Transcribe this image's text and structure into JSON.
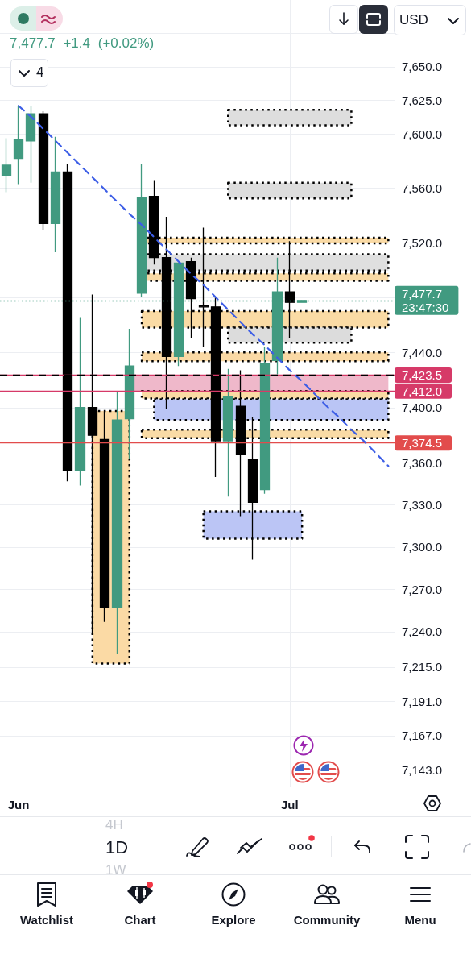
{
  "chart_data": {
    "type": "candlestick",
    "categories": [
      null,
      "Jun",
      null,
      null,
      null,
      null,
      null,
      null,
      null,
      null,
      null,
      null,
      null,
      null,
      null,
      null,
      null,
      null,
      null,
      null,
      null,
      null,
      null,
      "Jul",
      null,
      null,
      null,
      null,
      null,
      null,
      null,
      null
    ],
    "ohlc": [
      [
        7569,
        7597,
        7557,
        7577
      ],
      [
        7582,
        7621,
        7563,
        7596
      ],
      [
        7595,
        7621,
        7564,
        7615
      ],
      [
        7615,
        7617,
        7529,
        7534
      ],
      [
        7534,
        7598,
        7513,
        7572
      ],
      [
        7572,
        7578,
        7347,
        7355
      ],
      [
        7355,
        7465,
        7344,
        7400
      ],
      [
        7400,
        7482,
        7238,
        7380
      ],
      [
        7377,
        7397,
        7247,
        7257
      ],
      [
        7257,
        7412,
        7224,
        7391
      ],
      [
        7392,
        7457,
        7363,
        7430
      ],
      [
        7483,
        7578,
        7480,
        7553
      ],
      [
        7554,
        7566,
        7504,
        7509
      ],
      [
        7509,
        7539,
        7399,
        7437
      ],
      [
        7437,
        7505,
        7430,
        7505
      ],
      [
        7506,
        7509,
        7450,
        7479
      ],
      [
        7474,
        7531,
        7444,
        7473
      ],
      [
        7473,
        7480,
        7350,
        7376
      ],
      [
        7376,
        7428,
        7336,
        7408
      ],
      [
        7401,
        7427,
        7322,
        7366
      ],
      [
        7363,
        7393,
        7291,
        7332
      ],
      [
        7341,
        7444,
        7338,
        7432
      ],
      [
        7434,
        7509,
        7424,
        7484
      ],
      [
        7484,
        7521,
        7450,
        7476.3
      ],
      [
        7476.3,
        7478,
        7476,
        7477.7
      ],
      null,
      null,
      null,
      null,
      null,
      null,
      null
    ],
    "colors": [
      "#419a80",
      "#419a80",
      "#419a80",
      "#000000",
      "#419a80",
      "#000000",
      "#419a80",
      "#000000",
      "#000000",
      "#419a80",
      "#419a80",
      "#419a80",
      "#000000",
      "#000000",
      "#419a80",
      "#000000",
      "#000000",
      "#000000",
      "#419a80",
      "#000000",
      "#000000",
      "#419a80",
      "#419a80",
      "#000000",
      "#419a80",
      null,
      null,
      null,
      null,
      null,
      null,
      null
    ],
    "series": [
      {
        "type": "line",
        "color": "#3d5ee6",
        "line_style": "dashed",
        "marker": "none",
        "values": [
          null,
          7621,
          7613,
          7604,
          7595,
          7586,
          7577,
          7568,
          7559,
          7550,
          7541,
          7533,
          7524,
          7515,
          7506,
          7497,
          7489,
          7480,
          7471,
          7462,
          7453,
          7445,
          7436,
          7427,
          7419,
          7410,
          7401,
          7393,
          7384,
          7376,
          7367,
          7358
        ]
      },
      {
        "type": "line",
        "color": "#dedede",
        "line_style": "dotted",
        "values": [
          null,
          null,
          null,
          null,
          null,
          null,
          null,
          null,
          null,
          null,
          null,
          null,
          null,
          null,
          null,
          null,
          null,
          null,
          null,
          null,
          null,
          null,
          null,
          null,
          null,
          null,
          null,
          null,
          null,
          null,
          null,
          null
        ],
        "lower": [
          null,
          null,
          null,
          null,
          null,
          null,
          null,
          null,
          null,
          null,
          null,
          null,
          null,
          null,
          null,
          null,
          null,
          null,
          7606.5,
          7606.5,
          7606.5,
          7606.5,
          7606.5,
          7606.5,
          7606.5,
          7606.5,
          7606.5,
          7606.5,
          7606.5,
          null,
          null,
          null
        ],
        "upper": [
          null,
          null,
          null,
          null,
          null,
          null,
          null,
          null,
          null,
          null,
          null,
          null,
          null,
          null,
          null,
          null,
          null,
          null,
          7618,
          7618,
          7618,
          7618,
          7618,
          7618,
          7618,
          7618,
          7618,
          7618,
          7618,
          null,
          null,
          null
        ]
      },
      {
        "type": "line",
        "color": "#dddddd",
        "line_style": "dotted",
        "values": [
          null,
          null,
          null,
          null,
          null,
          null,
          null,
          null,
          null,
          null,
          null,
          null,
          null,
          null,
          null,
          null,
          null,
          null,
          null,
          null,
          null,
          null,
          null,
          null,
          null,
          null,
          null,
          null,
          null,
          null,
          null,
          null
        ],
        "lower": [
          null,
          null,
          null,
          null,
          null,
          null,
          null,
          null,
          null,
          null,
          null,
          null,
          null,
          null,
          null,
          null,
          null,
          null,
          7552.5,
          7552.5,
          7552.5,
          7552.5,
          7552.5,
          7552.5,
          7552.5,
          7552.5,
          7552.5,
          7552.5,
          7552.5,
          null,
          null,
          null
        ],
        "upper": [
          null,
          null,
          null,
          null,
          null,
          null,
          null,
          null,
          null,
          null,
          null,
          null,
          null,
          null,
          null,
          null,
          null,
          null,
          7564,
          7564,
          7564,
          7564,
          7564,
          7564,
          7564,
          7564,
          7564,
          7564,
          7564,
          null,
          null,
          null
        ]
      },
      {
        "type": "line",
        "color": "#fadaa5",
        "line_style": "dotted",
        "values": [
          null,
          null,
          null,
          null,
          null,
          null,
          null,
          null,
          null,
          null,
          null,
          null,
          null,
          null,
          null,
          null,
          null,
          null,
          null,
          null,
          null,
          null,
          null,
          null,
          null,
          null,
          null,
          null,
          null,
          null,
          null,
          null
        ],
        "lower": [
          null,
          null,
          null,
          null,
          null,
          null,
          null,
          null,
          null,
          null,
          null,
          7519.5,
          7519.5,
          7519.5,
          7519.5,
          7519.5,
          7519.5,
          7519.5,
          7519.5,
          7519.5,
          7519.5,
          7519.5,
          7519.5,
          7519.5,
          7519.5,
          7519.5,
          7519.5,
          7519.5,
          7519.5,
          7519.5,
          7519.5,
          7519.5
        ],
        "upper": [
          null,
          null,
          null,
          null,
          null,
          null,
          null,
          null,
          null,
          null,
          null,
          7523.5,
          7523.5,
          7523.5,
          7523.5,
          7523.5,
          7523.5,
          7523.5,
          7523.5,
          7523.5,
          7523.5,
          7523.5,
          7523.5,
          7523.5,
          7523.5,
          7523.5,
          7523.5,
          7523.5,
          7523.5,
          7523.5,
          7523.5,
          7523.5
        ]
      },
      {
        "type": "line",
        "color": "#dfdfdf",
        "line_style": "dotted",
        "values": [
          null,
          null,
          null,
          null,
          null,
          null,
          null,
          null,
          null,
          null,
          null,
          null,
          null,
          null,
          null,
          null,
          null,
          null,
          null,
          null,
          null,
          null,
          null,
          null,
          null,
          null,
          null,
          null,
          null,
          null,
          null,
          null
        ],
        "lower": [
          null,
          null,
          null,
          null,
          null,
          null,
          null,
          null,
          null,
          null,
          null,
          7499.5,
          7499.5,
          7499.5,
          7499.5,
          7499.5,
          7499.5,
          7499.5,
          7499.5,
          7499.5,
          7499.5,
          7499.5,
          7499.5,
          7499.5,
          7499.5,
          7499.5,
          7499.5,
          7499.5,
          7499.5,
          7499.5,
          7499.5,
          7499.5
        ],
        "upper": [
          null,
          null,
          null,
          null,
          null,
          null,
          null,
          null,
          null,
          null,
          null,
          7511.5,
          7511.5,
          7511.5,
          7511.5,
          7511.5,
          7511.5,
          7511.5,
          7511.5,
          7511.5,
          7511.5,
          7511.5,
          7511.5,
          7511.5,
          7511.5,
          7511.5,
          7511.5,
          7511.5,
          7511.5,
          7511.5,
          7511.5,
          7511.5
        ]
      },
      {
        "type": "line",
        "color": "#f9daa5",
        "line_style": "dotted",
        "values": [
          null,
          null,
          null,
          null,
          null,
          null,
          null,
          null,
          null,
          null,
          null,
          null,
          null,
          null,
          null,
          null,
          null,
          null,
          null,
          null,
          null,
          null,
          null,
          null,
          null,
          null,
          null,
          null,
          null,
          null,
          null,
          null
        ],
        "lower": [
          null,
          null,
          null,
          null,
          null,
          null,
          null,
          null,
          null,
          null,
          null,
          7492,
          7492,
          7492,
          7492,
          7492,
          7492,
          7492,
          7492,
          7492,
          7492,
          7492,
          7492,
          7492,
          7492,
          7492,
          7492,
          7492,
          7492,
          7492,
          7492,
          7492
        ],
        "upper": [
          null,
          null,
          null,
          null,
          null,
          null,
          null,
          null,
          null,
          null,
          null,
          7497.5,
          7497.5,
          7497.5,
          7497.5,
          7497.5,
          7497.5,
          7497.5,
          7497.5,
          7497.5,
          7497.5,
          7497.5,
          7497.5,
          7497.5,
          7497.5,
          7497.5,
          7497.5,
          7497.5,
          7497.5,
          7497.5,
          7497.5,
          7497.5
        ]
      },
      {
        "type": "line",
        "color": "#fadba5",
        "line_style": "dotted",
        "values": [
          null,
          null,
          null,
          null,
          null,
          null,
          null,
          null,
          null,
          null,
          null,
          null,
          null,
          null,
          null,
          null,
          null,
          null,
          null,
          null,
          null,
          null,
          null,
          null,
          null,
          null,
          null,
          null,
          null,
          null,
          null,
          null
        ],
        "lower": [
          null,
          null,
          null,
          null,
          null,
          null,
          null,
          null,
          null,
          null,
          null,
          7458,
          7458,
          7458,
          7458,
          7458,
          7458,
          7458,
          7458,
          7458,
          7458,
          7458,
          7458,
          7458,
          7458,
          7458,
          7458,
          7458,
          7458,
          7458,
          7458,
          7458
        ],
        "upper": [
          null,
          null,
          null,
          null,
          null,
          null,
          null,
          null,
          null,
          null,
          null,
          7470,
          7470,
          7470,
          7470,
          7470,
          7470,
          7470,
          7470,
          7470,
          7470,
          7470,
          7470,
          7470,
          7470,
          7470,
          7470,
          7470,
          7470,
          7470,
          7470,
          7470
        ]
      },
      {
        "type": "line",
        "color": "#dcdcdc",
        "line_style": "dotted",
        "values": [
          null,
          null,
          null,
          null,
          null,
          null,
          null,
          null,
          null,
          null,
          null,
          null,
          null,
          null,
          null,
          null,
          null,
          null,
          null,
          null,
          null,
          null,
          null,
          null,
          null,
          null,
          null,
          null,
          null,
          null,
          null,
          null
        ],
        "lower": [
          null,
          null,
          null,
          null,
          null,
          null,
          null,
          null,
          null,
          null,
          null,
          null,
          null,
          null,
          null,
          null,
          null,
          null,
          7447,
          7447,
          7447,
          7447,
          7447,
          7447,
          7447,
          7447,
          7447,
          7447,
          7447,
          null,
          null,
          null
        ],
        "upper": [
          null,
          null,
          null,
          null,
          null,
          null,
          null,
          null,
          null,
          null,
          null,
          null,
          null,
          null,
          null,
          null,
          null,
          null,
          7458,
          7458,
          7458,
          7458,
          7458,
          7458,
          7458,
          7458,
          7458,
          7458,
          7458,
          null,
          null,
          null
        ]
      },
      {
        "type": "line",
        "color": "#fad9a5",
        "line_style": "dotted",
        "values": [
          null,
          null,
          null,
          null,
          null,
          null,
          null,
          null,
          null,
          null,
          null,
          null,
          null,
          null,
          null,
          null,
          null,
          null,
          null,
          null,
          null,
          null,
          null,
          null,
          null,
          null,
          null,
          null,
          null,
          null,
          null,
          null
        ],
        "lower": [
          null,
          null,
          null,
          null,
          null,
          null,
          null,
          null,
          null,
          null,
          null,
          7433.5,
          7433.5,
          7433.5,
          7433.5,
          7433.5,
          7433.5,
          7433.5,
          7433.5,
          7433.5,
          7433.5,
          7433.5,
          7433.5,
          7433.5,
          7433.5,
          7433.5,
          7433.5,
          7433.5,
          7433.5,
          7433.5,
          7433.5,
          7433.5
        ],
        "upper": [
          null,
          null,
          null,
          null,
          null,
          null,
          null,
          null,
          null,
          null,
          null,
          7440,
          7440,
          7440,
          7440,
          7440,
          7440,
          7440,
          7440,
          7440,
          7440,
          7440,
          7440,
          7440,
          7440,
          7440,
          7440,
          7440,
          7440,
          7440,
          7440,
          7440
        ]
      },
      {
        "type": "line",
        "color": "#efb8ca",
        "values": [
          null,
          null,
          null,
          null,
          null,
          null,
          null,
          null,
          null,
          null,
          null,
          null,
          null,
          null,
          null,
          null,
          null,
          null,
          null,
          null,
          null,
          null,
          null,
          null,
          null,
          null,
          null,
          null,
          null,
          null,
          null,
          null
        ],
        "lower": [
          null,
          null,
          null,
          null,
          null,
          null,
          null,
          null,
          null,
          null,
          7412,
          7412,
          7412,
          7412,
          7412,
          7412,
          7412,
          7412,
          7412,
          7412,
          7412,
          7412,
          7412,
          7412,
          7412,
          7412,
          7412,
          7412,
          7412,
          7412,
          7412,
          7412
        ],
        "upper": [
          null,
          null,
          null,
          null,
          null,
          null,
          null,
          null,
          null,
          null,
          7423.5,
          7423.5,
          7423.5,
          7423.5,
          7423.5,
          7423.5,
          7423.5,
          7423.5,
          7423.5,
          7423.5,
          7423.5,
          7423.5,
          7423.5,
          7423.5,
          7423.5,
          7423.5,
          7423.5,
          7423.5,
          7423.5,
          7423.5,
          7423.5,
          7423.5
        ]
      },
      {
        "type": "line",
        "color": "#fadaa4",
        "line_style": "dotted",
        "values": [
          null,
          null,
          null,
          null,
          null,
          null,
          null,
          null,
          null,
          null,
          null,
          null,
          null,
          null,
          null,
          null,
          null,
          null,
          null,
          null,
          null,
          null,
          null,
          null,
          null,
          null,
          null,
          null,
          null,
          null,
          null,
          null
        ],
        "lower": [
          null,
          null,
          null,
          null,
          null,
          null,
          null,
          null,
          null,
          null,
          null,
          7406.5,
          7406.5,
          7406.5,
          7406.5,
          7406.5,
          7406.5,
          7406.5,
          7406.5,
          7406.5,
          7406.5,
          7406.5,
          7406.5,
          7406.5,
          7406.5,
          7406.5,
          7406.5,
          7406.5,
          7406.5,
          7406.5,
          7406.5,
          7406.5
        ],
        "upper": [
          null,
          null,
          null,
          null,
          null,
          null,
          null,
          null,
          null,
          null,
          null,
          7412,
          7412,
          7412,
          7412,
          7412,
          7412,
          7412,
          7412,
          7412,
          7412,
          7412,
          7412,
          7412,
          7412,
          7412,
          7412,
          7412,
          7412,
          7412,
          7412,
          7412
        ]
      },
      {
        "type": "line",
        "color": "#bac5f5",
        "line_style": "dotted",
        "values": [
          null,
          null,
          null,
          null,
          null,
          null,
          null,
          null,
          null,
          null,
          null,
          null,
          null,
          null,
          null,
          null,
          null,
          null,
          null,
          null,
          null,
          null,
          null,
          null,
          null,
          null,
          null,
          null,
          null,
          null,
          null,
          null
        ],
        "lower": [
          null,
          null,
          null,
          null,
          null,
          null,
          null,
          null,
          null,
          null,
          null,
          null,
          7391,
          7391,
          7391,
          7391,
          7391,
          7391,
          7391,
          7391,
          7391,
          7391,
          7391,
          7391,
          7391,
          7391,
          7391,
          7391,
          7391,
          7391,
          7391,
          7391
        ],
        "upper": [
          null,
          null,
          null,
          null,
          null,
          null,
          null,
          null,
          null,
          null,
          null,
          null,
          7406,
          7406,
          7406,
          7406,
          7406,
          7406,
          7406,
          7406,
          7406,
          7406,
          7406,
          7406,
          7406,
          7406,
          7406,
          7406,
          7406,
          7406,
          7406,
          7406
        ]
      },
      {
        "type": "line",
        "color": "#f9dba6",
        "line_style": "dotted",
        "values": [
          null,
          null,
          null,
          null,
          null,
          null,
          null,
          null,
          null,
          null,
          null,
          null,
          null,
          null,
          null,
          null,
          null,
          null,
          null,
          null,
          null,
          null,
          null,
          null,
          null,
          null,
          null,
          null,
          null,
          null,
          null,
          null
        ],
        "lower": [
          null,
          null,
          null,
          null,
          null,
          null,
          null,
          null,
          null,
          null,
          null,
          7378,
          7378,
          7378,
          7378,
          7378,
          7378,
          7378,
          7378,
          7378,
          7378,
          7378,
          7378,
          7378,
          7378,
          7378,
          7378,
          7378,
          7378,
          7378,
          7378,
          7378
        ],
        "upper": [
          null,
          null,
          null,
          null,
          null,
          null,
          null,
          null,
          null,
          null,
          null,
          7384,
          7384,
          7384,
          7384,
          7384,
          7384,
          7384,
          7384,
          7384,
          7384,
          7384,
          7384,
          7384,
          7384,
          7384,
          7384,
          7384,
          7384,
          7384,
          7384,
          7384
        ]
      },
      {
        "type": "line",
        "color": "#fbdaa5",
        "line_style": "dotted",
        "values": [
          null,
          null,
          null,
          null,
          null,
          null,
          null,
          null,
          null,
          null,
          null,
          null,
          null,
          null,
          null,
          null,
          null,
          null,
          null,
          null,
          null,
          null,
          null,
          null,
          null,
          null,
          null,
          null,
          null,
          null,
          null,
          null
        ],
        "lower": [
          null,
          null,
          null,
          null,
          null,
          null,
          null,
          7217.5,
          7217.5,
          7217.5,
          7217.5,
          null,
          null,
          null,
          null,
          null,
          null,
          null,
          null,
          null,
          null,
          null,
          null,
          null,
          null,
          null,
          null,
          null,
          null,
          null,
          null,
          null
        ],
        "upper": [
          null,
          null,
          null,
          null,
          null,
          null,
          null,
          7397.5,
          7397.5,
          7397.5,
          7397.5,
          null,
          null,
          null,
          null,
          null,
          null,
          null,
          null,
          null,
          null,
          null,
          null,
          null,
          null,
          null,
          null,
          null,
          null,
          null,
          null,
          null
        ]
      },
      {
        "type": "line",
        "color": "#bbc5f5",
        "line_style": "dotted",
        "values": [
          null,
          null,
          null,
          null,
          null,
          null,
          null,
          null,
          null,
          null,
          null,
          null,
          null,
          null,
          null,
          null,
          null,
          null,
          null,
          null,
          null,
          null,
          null,
          null,
          null,
          null,
          null,
          null,
          null,
          null,
          null,
          null
        ],
        "lower": [
          null,
          null,
          null,
          null,
          null,
          null,
          null,
          null,
          null,
          null,
          null,
          null,
          null,
          null,
          null,
          null,
          7306,
          7306,
          7306,
          7306,
          7306,
          7306,
          7306,
          7306,
          7306,
          null,
          null,
          null,
          null,
          null,
          null,
          null
        ],
        "upper": [
          null,
          null,
          null,
          null,
          null,
          null,
          null,
          null,
          null,
          null,
          null,
          null,
          null,
          null,
          null,
          null,
          7325.5,
          7325.5,
          7325.5,
          7325.5,
          7325.5,
          7325.5,
          7325.5,
          7325.5,
          7325.5,
          null,
          null,
          null,
          null,
          null,
          null,
          null
        ]
      }
    ],
    "ylim": [
      7131,
      7700
    ],
    "yticks": [
      {
        "value": 7675,
        "label": null
      },
      {
        "value": 7650,
        "label": "7,650.0"
      },
      {
        "value": 7625,
        "label": "7,625.0"
      },
      {
        "value": 7600,
        "label": "7,600.0"
      },
      {
        "value": 7560,
        "label": "7,560.0"
      },
      {
        "value": 7520,
        "label": "7,520.0"
      },
      {
        "value": 7480,
        "label": null
      },
      {
        "value": 7440,
        "label": "7,440.0"
      },
      {
        "value": 7400,
        "label": "7,400.0"
      },
      {
        "value": 7360,
        "label": "7,360.0"
      },
      {
        "value": 7330,
        "label": "7,330.0"
      },
      {
        "value": 7300,
        "label": "7,300.0"
      },
      {
        "value": 7270,
        "label": "7,270.0"
      },
      {
        "value": 7240,
        "label": "7,240.0"
      },
      {
        "value": 7215,
        "label": "7,215.0"
      },
      {
        "value": 7191,
        "label": "7,191.0"
      },
      {
        "value": 7167,
        "label": "7,167.0"
      },
      {
        "value": 7143,
        "label": "7,143.0"
      }
    ],
    "log": true,
    "grid": true,
    "ref_lines": [
      {
        "axis": "y",
        "value": 7477.7,
        "label": "7,477.7\n23:47:30",
        "color": "#419a80",
        "line_style": "dotted"
      },
      {
        "axis": "y",
        "value": 7423.5,
        "label": "7,423.5",
        "color": "#d63a68"
      },
      {
        "axis": "y",
        "value": 7423.5,
        "color": "#000000",
        "line_style": "dashed"
      },
      {
        "axis": "y",
        "value": 7412.0,
        "label": "7,412.0",
        "color": "#d63a68"
      },
      {
        "axis": "y",
        "value": 7374.5,
        "label": "7,374.5",
        "color": "#e24c4c"
      }
    ],
    "annotations": [
      "7,477.7 +1.4 (+0.02%)",
      "4",
      "USD",
      "4H",
      "1D",
      "1W",
      "Watchlist",
      "Chart",
      "Explore",
      "Community",
      "Menu"
    ]
  }
}
